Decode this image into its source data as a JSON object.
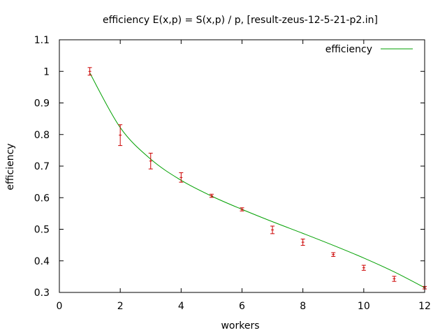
{
  "chart_data": {
    "type": "line",
    "title": "efficiency E(x,p) = S(x,p) / p, [result-zeus-12-5-21-p2.in]",
    "xlabel": "workers",
    "ylabel": "efficiency",
    "xlim": [
      0,
      12
    ],
    "ylim": [
      0.3,
      1.1
    ],
    "x_ticks": [
      0,
      2,
      4,
      6,
      8,
      10,
      12
    ],
    "x_tick_labels": [
      "0",
      "2",
      "4",
      "6",
      "8",
      "10",
      "12"
    ],
    "y_ticks": [
      0.3,
      0.4,
      0.5,
      0.6,
      0.7,
      0.8,
      0.9,
      1.0,
      1.1
    ],
    "y_tick_labels": [
      "0.3",
      "0.4",
      "0.5",
      "0.6",
      "0.7",
      "0.8",
      "0.9",
      "1",
      "1.1"
    ],
    "grid": false,
    "legend_position": "top-right",
    "series": [
      {
        "name": "efficiency",
        "kind": "fit-line",
        "color": "#00a000",
        "x": [
          1,
          2,
          3,
          4,
          5,
          6,
          7,
          8,
          9,
          10,
          11,
          12
        ],
        "values": [
          0.995,
          0.822,
          0.722,
          0.655,
          0.605,
          0.563,
          0.524,
          0.487,
          0.449,
          0.409,
          0.365,
          0.315
        ]
      },
      {
        "name": "",
        "kind": "errorbars",
        "color": "#cc0000",
        "x": [
          1,
          2,
          3,
          4,
          5,
          6,
          7,
          8,
          9,
          10,
          11,
          12
        ],
        "values": [
          1.0,
          0.798,
          0.716,
          0.664,
          0.606,
          0.563,
          0.498,
          0.459,
          0.42,
          0.378,
          0.343,
          0.315
        ],
        "err": [
          0.012,
          0.033,
          0.025,
          0.015,
          0.005,
          0.005,
          0.012,
          0.01,
          0.006,
          0.008,
          0.008,
          0.004
        ]
      }
    ]
  }
}
